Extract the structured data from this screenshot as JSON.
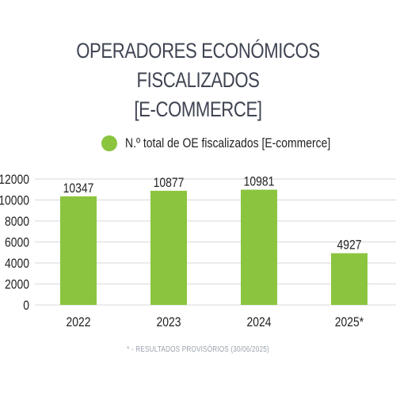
{
  "title_line1": "OPERADORES ECONÓMICOS FISCALIZADOS",
  "title_line2": "[E-COMMERCE]",
  "footnote": "* - RESULTADOS PROVISÓRIOS (30/06/2025)",
  "colors": {
    "bar": "#8bc53f",
    "grid": "#d9d9d9",
    "text": "#222222",
    "title": "#3f4452"
  },
  "chart_data": {
    "type": "bar",
    "categories": [
      "2022",
      "2023",
      "2024",
      "2025*"
    ],
    "series": [
      {
        "name": "N.º total de OE fiscalizados [E-commerce]",
        "values": [
          10347,
          10877,
          10981,
          4927
        ]
      }
    ],
    "data_labels": [
      "10347",
      "10877",
      "10981",
      "4927"
    ],
    "ylim": [
      0,
      12000
    ],
    "yticks": [
      0,
      2000,
      4000,
      6000,
      8000,
      10000,
      12000
    ],
    "ytick_labels": [
      "0",
      "2000",
      "4000",
      "6000",
      "8000",
      "10000",
      "12000"
    ],
    "grid": true,
    "legend": "top-center"
  }
}
